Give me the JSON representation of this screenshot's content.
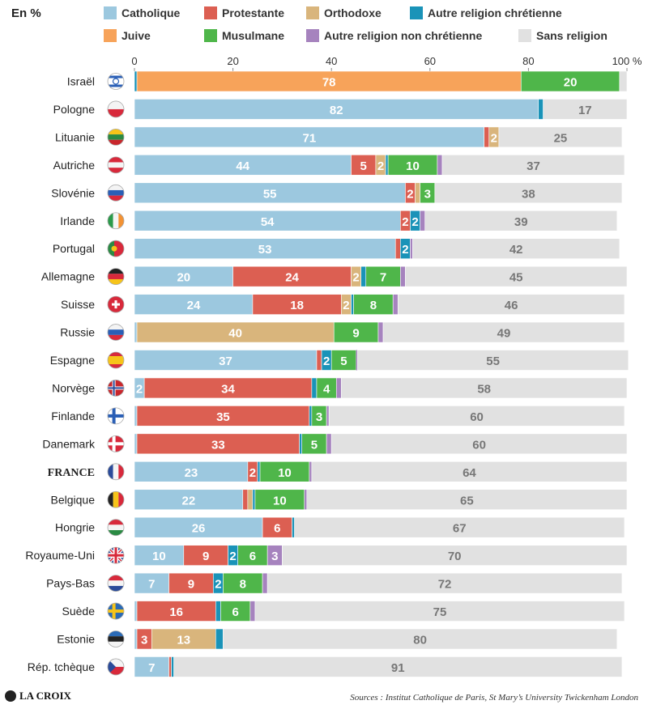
{
  "unit_label": "En %",
  "brand": "LA CROIX",
  "source": "Sources : Institut Catholique de Paris, St Mary’s University Twickenham London",
  "legend": [
    {
      "name": "Catholique",
      "color": "#9cc8df"
    },
    {
      "name": "Protestante",
      "color": "#dc5f52"
    },
    {
      "name": "Orthodoxe",
      "color": "#d9b57c"
    },
    {
      "name": "Autre religion chrétienne",
      "color": "#1a93b8"
    },
    {
      "name": "Juive",
      "color": "#f7a35a"
    },
    {
      "name": "Musulmane",
      "color": "#4fb64a"
    },
    {
      "name": "Autre religion non chrétienne",
      "color": "#a683be"
    },
    {
      "name": "Sans religion",
      "color": "#e1e1e1"
    }
  ],
  "chart_data": {
    "type": "bar",
    "orientation": "horizontal",
    "stacked": true,
    "xlim": [
      0,
      100
    ],
    "xticks": [
      "0",
      "20",
      "40",
      "60",
      "80",
      "100 %"
    ],
    "series_names": [
      "Catholique",
      "Protestante",
      "Orthodoxe",
      "Autre religion chrétienne",
      "Juive",
      "Musulmane",
      "Autre religion non chrétienne",
      "Sans religion"
    ],
    "countries": [
      {
        "name": "Israël",
        "flag": "israel",
        "values": [
          0,
          0,
          0,
          0.5,
          78,
          20,
          0,
          1.5
        ],
        "labels": [
          "",
          "",
          "",
          "",
          "78",
          "20",
          "",
          ""
        ]
      },
      {
        "name": "Pologne",
        "flag": "poland",
        "values": [
          82,
          0,
          0,
          1,
          0,
          0,
          0,
          17
        ],
        "labels": [
          "82",
          "",
          "",
          "",
          "",
          "",
          "",
          "17"
        ]
      },
      {
        "name": "Lituanie",
        "flag": "lithuania",
        "values": [
          71,
          1,
          2,
          0,
          0,
          0,
          0,
          25
        ],
        "labels": [
          "71",
          "",
          "2",
          "",
          "",
          "",
          "",
          "25"
        ]
      },
      {
        "name": "Autriche",
        "flag": "austria",
        "values": [
          44,
          5,
          2,
          0.5,
          0,
          10,
          1,
          37
        ],
        "labels": [
          "44",
          "5",
          "2",
          "",
          "",
          "10",
          "",
          "37"
        ]
      },
      {
        "name": "Slovénie",
        "flag": "slovenia",
        "values": [
          55,
          2,
          1,
          0,
          0,
          3,
          0,
          38
        ],
        "labels": [
          "55",
          "2",
          "",
          "",
          "",
          "3",
          "",
          "38"
        ]
      },
      {
        "name": "Irlande",
        "flag": "ireland",
        "values": [
          54,
          2,
          0,
          2,
          0,
          0,
          1,
          39
        ],
        "labels": [
          "54",
          "2",
          "",
          "2",
          "",
          "",
          "",
          "39"
        ]
      },
      {
        "name": "Portugal",
        "flag": "portugal",
        "values": [
          53,
          1,
          0,
          2,
          0,
          0,
          0.5,
          42
        ],
        "labels": [
          "53",
          "",
          "",
          "2",
          "",
          "",
          "",
          "42"
        ]
      },
      {
        "name": "Allemagne",
        "flag": "germany",
        "values": [
          20,
          24,
          2,
          1,
          0,
          7,
          1,
          45
        ],
        "labels": [
          "20",
          "24",
          "2",
          "",
          "",
          "7",
          "",
          "45"
        ]
      },
      {
        "name": "Suisse",
        "flag": "switzerland",
        "values": [
          24,
          18,
          2,
          0.5,
          0,
          8,
          1,
          46
        ],
        "labels": [
          "24",
          "18",
          "2",
          "",
          "",
          "8",
          "",
          "46"
        ]
      },
      {
        "name": "Russie",
        "flag": "russia",
        "values": [
          0.5,
          0,
          40,
          0,
          0,
          9,
          1,
          49
        ],
        "labels": [
          "",
          "",
          "40",
          "",
          "",
          "9",
          "",
          "49"
        ]
      },
      {
        "name": "Espagne",
        "flag": "spain",
        "values": [
          37,
          1,
          0,
          2,
          0,
          5,
          0.3,
          55
        ],
        "labels": [
          "37",
          "",
          "",
          "2",
          "",
          "5",
          "",
          "55"
        ]
      },
      {
        "name": "Norvège",
        "flag": "norway",
        "values": [
          2,
          34,
          0,
          1,
          0,
          4,
          1,
          58
        ],
        "labels": [
          "2",
          "34",
          "",
          "",
          "",
          "4",
          "",
          "58"
        ]
      },
      {
        "name": "Finlande",
        "flag": "finland",
        "values": [
          0.5,
          35,
          0,
          0.5,
          0,
          3,
          0.5,
          60
        ],
        "labels": [
          "",
          "35",
          "",
          "",
          "",
          "3",
          "",
          "60"
        ]
      },
      {
        "name": "Danemark",
        "flag": "denmark",
        "values": [
          0.5,
          33,
          0,
          0.5,
          0,
          5,
          1,
          60
        ],
        "labels": [
          "",
          "33",
          "",
          "",
          "",
          "5",
          "",
          "60"
        ]
      },
      {
        "name": "FRANCE",
        "flag": "france",
        "values": [
          23,
          2,
          0,
          0.5,
          0,
          10,
          0.5,
          64
        ],
        "labels": [
          "23",
          "2",
          "",
          "",
          "",
          "10",
          "",
          "64"
        ],
        "bold": true
      },
      {
        "name": "Belgique",
        "flag": "belgium",
        "values": [
          22,
          1,
          1,
          0.5,
          0,
          10,
          0.5,
          65
        ],
        "labels": [
          "22",
          "",
          "",
          "",
          "",
          "10",
          "",
          "65"
        ]
      },
      {
        "name": "Hongrie",
        "flag": "hungary",
        "values": [
          26,
          6,
          0,
          0.5,
          0,
          0,
          0,
          67
        ],
        "labels": [
          "26",
          "6",
          "",
          "",
          "",
          "",
          "",
          "67"
        ]
      },
      {
        "name": "Royaume-Uni",
        "flag": "uk",
        "values": [
          10,
          9,
          0,
          2,
          0,
          6,
          3,
          70
        ],
        "labels": [
          "10",
          "9",
          "",
          "2",
          "",
          "6",
          "3",
          "70"
        ]
      },
      {
        "name": "Pays-Bas",
        "flag": "netherlands",
        "values": [
          7,
          9,
          0,
          2,
          0,
          8,
          1,
          72
        ],
        "labels": [
          "7",
          "9",
          "",
          "2",
          "",
          "8",
          "",
          "72"
        ]
      },
      {
        "name": "Suède",
        "flag": "sweden",
        "values": [
          0.5,
          16,
          0,
          1,
          0,
          6,
          1,
          75
        ],
        "labels": [
          "",
          "16",
          "",
          "",
          "",
          "6",
          "",
          "75"
        ]
      },
      {
        "name": "Estonie",
        "flag": "estonia",
        "values": [
          0.5,
          3,
          13,
          1.5,
          0,
          0,
          0,
          80
        ],
        "labels": [
          "",
          "3",
          "13",
          "",
          "",
          "",
          "",
          "80"
        ]
      },
      {
        "name": "Rép. tchèque",
        "flag": "czech",
        "values": [
          7,
          0.5,
          0,
          0.5,
          0,
          0,
          0,
          91
        ],
        "labels": [
          "7",
          "",
          "",
          "",
          "",
          "",
          "",
          "91"
        ]
      }
    ]
  }
}
